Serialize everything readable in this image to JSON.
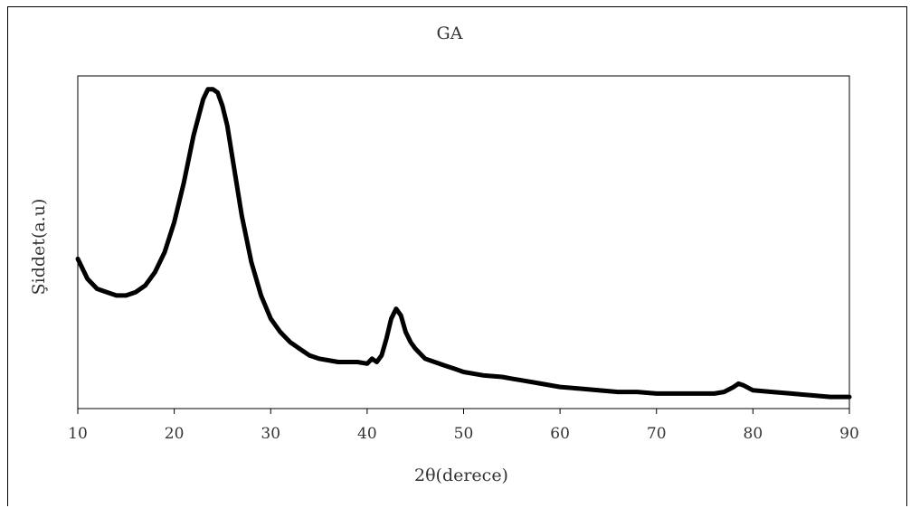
{
  "chart_data": {
    "type": "line",
    "title": "GA",
    "xlabel": "2θ(derece)",
    "ylabel": "Şiddet(a.u)",
    "xlim": [
      10,
      90
    ],
    "ylim": [
      0,
      100
    ],
    "x_ticks": [
      "10",
      "20",
      "30",
      "40",
      "50",
      "60",
      "70",
      "80",
      "90"
    ],
    "y_ticks_shown": false,
    "grid": false,
    "line_color": "#000000",
    "series": [
      {
        "x": [
          10,
          11,
          12,
          13,
          14,
          15,
          16,
          17,
          18,
          19,
          20,
          21,
          22,
          23,
          23.5,
          24,
          24.5,
          25,
          25.5,
          26,
          27,
          28,
          29,
          30,
          31,
          32,
          33,
          34,
          35,
          36,
          37,
          38,
          39,
          40,
          40.5,
          41,
          41.5,
          42,
          42.5,
          43,
          43.5,
          44,
          44.5,
          45,
          46,
          47,
          48,
          49,
          50,
          52,
          54,
          55,
          56,
          58,
          60,
          62,
          64,
          66,
          68,
          70,
          72,
          74,
          76,
          77,
          78,
          78.5,
          79,
          80,
          82,
          84,
          86,
          88,
          90
        ],
        "y": [
          45,
          39,
          36,
          35,
          34,
          34,
          35,
          37,
          41,
          47,
          56,
          68,
          82,
          93,
          96,
          96,
          95,
          91,
          85,
          76,
          58,
          44,
          34,
          27,
          23,
          20,
          18,
          16,
          15,
          14.5,
          14,
          14,
          14,
          13.5,
          15,
          14,
          16,
          21,
          27,
          30,
          28,
          23,
          20,
          18,
          15,
          14,
          13,
          12,
          11,
          10,
          9.5,
          9,
          8.5,
          7.5,
          6.5,
          6,
          5.5,
          5,
          5,
          4.5,
          4.5,
          4.5,
          4.5,
          5,
          6.5,
          7.5,
          7,
          5.5,
          5,
          4.5,
          4,
          3.5,
          3.5
        ]
      }
    ]
  }
}
